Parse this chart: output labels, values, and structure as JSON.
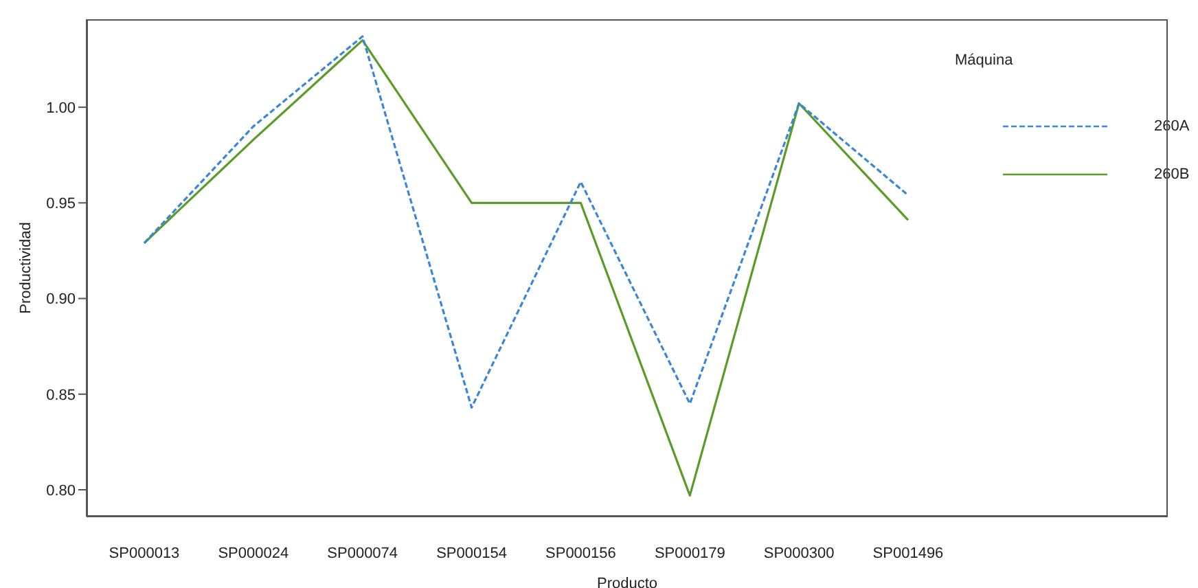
{
  "chart_data": {
    "type": "line",
    "xlabel": "Producto",
    "ylabel": "Productividad",
    "legend_title": "Máquina",
    "legend": "top right",
    "marker": "none",
    "categories": [
      "SP000013",
      "SP000024",
      "SP000074",
      "SP000154",
      "SP000156",
      "SP000179",
      "SP000300",
      "SP001496"
    ],
    "ylim": [
      0.786,
      1.046
    ],
    "yticks": [
      {
        "value": 0.8,
        "label": "0.80"
      },
      {
        "value": 0.85,
        "label": "0.85"
      },
      {
        "value": 0.9,
        "label": "0.90"
      },
      {
        "value": 0.95,
        "label": "0.95"
      },
      {
        "value": 1.0,
        "label": "1.00"
      }
    ],
    "series": [
      {
        "name": "260A",
        "color": "#3b86d8",
        "line_style": "dashed",
        "values": [
          0.929,
          0.99,
          1.037,
          0.843,
          0.961,
          0.845,
          1.002,
          0.954
        ]
      },
      {
        "name": "260B",
        "color": "#5a9b2a",
        "line_style": "solid",
        "values": [
          0.929,
          0.983,
          1.035,
          0.95,
          0.95,
          0.797,
          1.002,
          0.941
        ]
      }
    ]
  }
}
